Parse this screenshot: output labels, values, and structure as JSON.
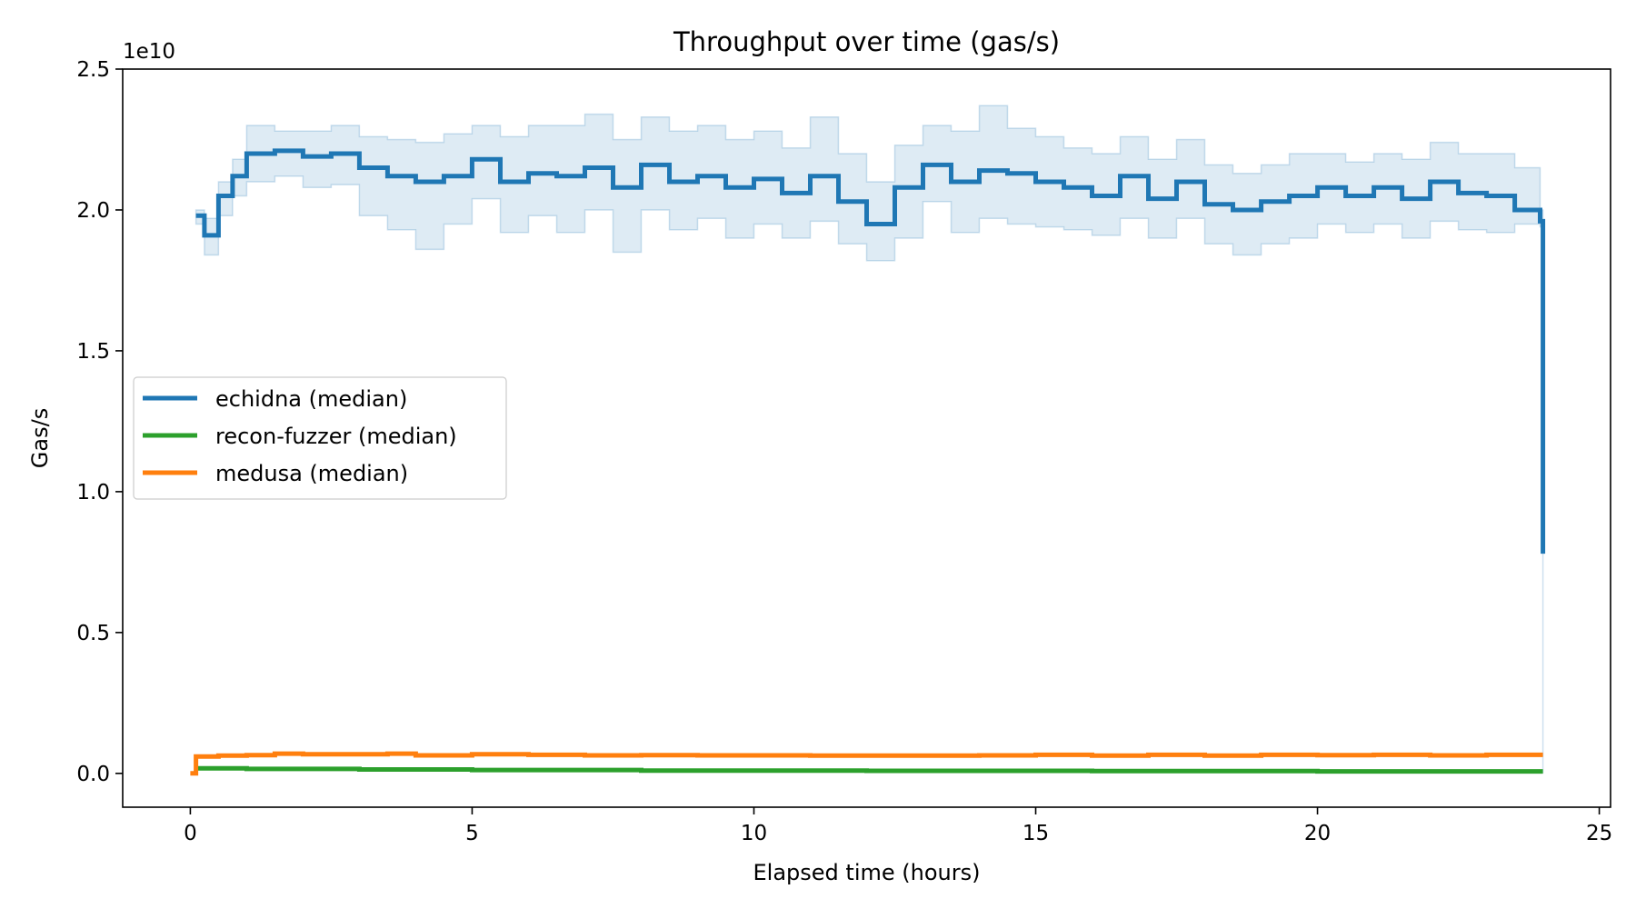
{
  "chart_data": {
    "type": "line",
    "title": "Throughput over time (gas/s)",
    "xlabel": "Elapsed time (hours)",
    "ylabel": "Gas/s",
    "y_multiplier_label": "1e10",
    "xlim": [
      -1.2,
      25.2
    ],
    "ylim": [
      -0.12,
      2.5
    ],
    "x_ticks": [
      0,
      5,
      10,
      15,
      20,
      25
    ],
    "x_tick_labels": [
      "0",
      "5",
      "10",
      "15",
      "20",
      "25"
    ],
    "y_ticks": [
      0.0,
      0.5,
      1.0,
      1.5,
      2.0,
      2.5
    ],
    "y_tick_labels": [
      "0.0",
      "0.5",
      "1.0",
      "1.5",
      "2.0",
      "2.5"
    ],
    "grid": false,
    "legend_position": "center-left",
    "series": [
      {
        "name": "echidna (median)",
        "color": "#1f77b4",
        "x": [
          0.1,
          0.25,
          0.5,
          0.75,
          1,
          1.5,
          2,
          2.5,
          3,
          3.5,
          4,
          4.5,
          5,
          5.5,
          6,
          6.5,
          7,
          7.5,
          8,
          8.5,
          9,
          9.5,
          10,
          10.5,
          11,
          11.5,
          12,
          12.5,
          13,
          13.5,
          14,
          14.5,
          15,
          15.5,
          16,
          16.5,
          17,
          17.5,
          18,
          18.5,
          19,
          19.5,
          20,
          20.5,
          21,
          21.5,
          22,
          22.5,
          23,
          23.5,
          23.95,
          24.0
        ],
        "values": [
          1.98,
          1.91,
          2.05,
          2.12,
          2.2,
          2.21,
          2.19,
          2.2,
          2.15,
          2.12,
          2.1,
          2.12,
          2.18,
          2.1,
          2.13,
          2.12,
          2.15,
          2.08,
          2.16,
          2.1,
          2.12,
          2.08,
          2.11,
          2.06,
          2.12,
          2.03,
          1.95,
          2.08,
          2.16,
          2.1,
          2.14,
          2.13,
          2.1,
          2.08,
          2.05,
          2.12,
          2.04,
          2.1,
          2.02,
          2.0,
          2.03,
          2.05,
          2.08,
          2.05,
          2.08,
          2.04,
          2.1,
          2.06,
          2.05,
          2.0,
          1.96,
          0.78
        ],
        "band_low": [
          1.95,
          1.84,
          1.98,
          2.05,
          2.1,
          2.12,
          2.08,
          2.09,
          1.98,
          1.93,
          1.86,
          1.95,
          2.04,
          1.92,
          1.98,
          1.92,
          2.0,
          1.85,
          2.0,
          1.93,
          1.97,
          1.9,
          1.95,
          1.9,
          1.96,
          1.88,
          1.82,
          1.9,
          2.03,
          1.92,
          1.97,
          1.95,
          1.94,
          1.93,
          1.91,
          1.97,
          1.9,
          1.97,
          1.88,
          1.84,
          1.88,
          1.9,
          1.95,
          1.92,
          1.95,
          1.9,
          1.96,
          1.93,
          1.92,
          1.95,
          1.94,
          0.0
        ],
        "band_high": [
          2.0,
          1.97,
          2.1,
          2.18,
          2.3,
          2.28,
          2.28,
          2.3,
          2.26,
          2.25,
          2.24,
          2.27,
          2.3,
          2.26,
          2.3,
          2.3,
          2.34,
          2.25,
          2.33,
          2.28,
          2.3,
          2.25,
          2.28,
          2.22,
          2.33,
          2.2,
          2.1,
          2.23,
          2.3,
          2.28,
          2.37,
          2.29,
          2.26,
          2.22,
          2.2,
          2.26,
          2.18,
          2.25,
          2.16,
          2.13,
          2.16,
          2.2,
          2.2,
          2.17,
          2.2,
          2.18,
          2.24,
          2.2,
          2.2,
          2.15,
          2.0,
          0.78
        ]
      },
      {
        "name": "recon-fuzzer (median)",
        "color": "#2ca02c",
        "x": [
          0.1,
          1,
          3,
          5,
          8,
          12,
          16,
          20,
          24
        ],
        "values": [
          0.018,
          0.016,
          0.014,
          0.012,
          0.01,
          0.009,
          0.008,
          0.007,
          0.007
        ]
      },
      {
        "name": "medusa (median)",
        "color": "#ff7f0e",
        "x": [
          0.0,
          0.08,
          0.1,
          0.5,
          1,
          1.5,
          2,
          3,
          3.5,
          4,
          5,
          6,
          7,
          8,
          9,
          10,
          11,
          12,
          13,
          14,
          15,
          16,
          17,
          18,
          19,
          20,
          21,
          22,
          23,
          24
        ],
        "values": [
          0.0,
          0.0,
          0.06,
          0.063,
          0.065,
          0.07,
          0.068,
          0.068,
          0.07,
          0.064,
          0.068,
          0.066,
          0.064,
          0.065,
          0.064,
          0.064,
          0.063,
          0.063,
          0.063,
          0.064,
          0.066,
          0.063,
          0.066,
          0.063,
          0.066,
          0.065,
          0.066,
          0.064,
          0.066,
          0.066
        ]
      }
    ]
  }
}
